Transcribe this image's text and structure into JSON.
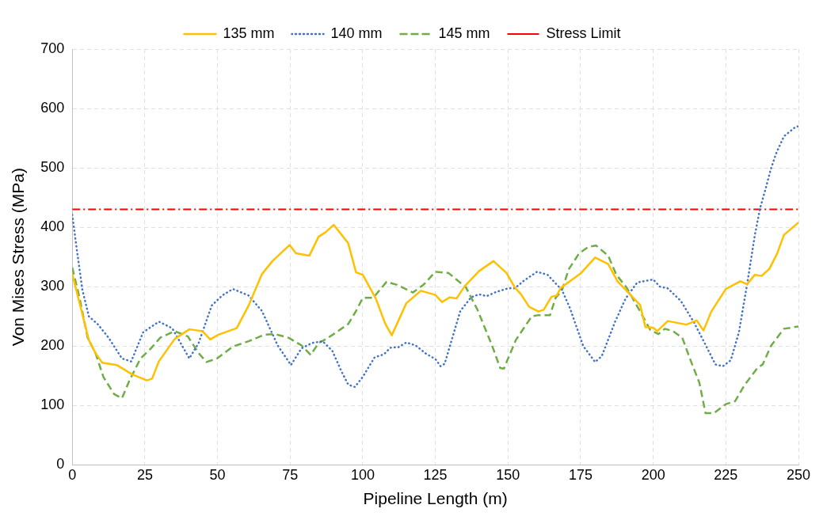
{
  "chart_data": {
    "type": "line",
    "xlabel": "Pipeline Length (m)",
    "ylabel": "Von Mises Stress (MPa)",
    "xlim": [
      0,
      250
    ],
    "xticks": [
      0,
      25,
      50,
      75,
      100,
      125,
      150,
      175,
      200,
      225,
      250
    ],
    "ylim": [
      0,
      700
    ],
    "yticks": [
      0,
      100,
      200,
      300,
      400,
      500,
      600,
      700
    ],
    "grid": true,
    "legend": "top",
    "series": [
      {
        "name": "135 mm",
        "color": "#ffc000",
        "line_style": "solid",
        "x": [
          0,
          3,
          5.7,
          8,
          10.3,
          15.3,
          20.7,
          25.7,
          27.5,
          29.8,
          35.3,
          40.3,
          44.8,
          47.5,
          50.3,
          56.6,
          60.7,
          65.3,
          68.9,
          74.8,
          77,
          81.6,
          84.8,
          87.3,
          90,
          95,
          97.7,
          100,
          104.5,
          107.7,
          110,
          115,
          120,
          125,
          127.3,
          130,
          132.3,
          135,
          140,
          145,
          149.5,
          152.3,
          154.5,
          157.3,
          160.5,
          162.3,
          165,
          166.8,
          168.2,
          175,
          180,
          184.5,
          187.7,
          195.5,
          197.3,
          200,
          201.4,
          205,
          211.4,
          215,
          217.3,
          220,
          225,
          230,
          232.3,
          235,
          237.3,
          240,
          242.7,
          245,
          250
        ],
        "values": [
          321,
          263,
          210,
          188,
          172,
          168,
          152,
          142,
          145,
          174,
          212,
          228,
          225,
          211,
          219,
          230,
          268,
          321,
          343,
          370,
          356,
          352,
          384,
          392,
          404,
          373,
          324,
          320,
          280,
          238,
          218,
          272,
          293,
          286,
          274,
          282,
          280,
          300,
          326,
          343,
          323,
          299,
          287,
          266,
          258,
          261,
          283,
          285,
          298,
          322,
          349,
          338,
          309,
          269,
          232,
          231,
          225,
          242,
          236,
          243,
          226,
          258,
          296,
          309,
          304,
          320,
          318,
          330,
          356,
          387,
          408
        ]
      },
      {
        "name": "140 mm",
        "color": "#4472c4",
        "line_style": "dotted",
        "x": [
          0,
          1.6,
          3.5,
          5.7,
          8.9,
          12.5,
          17.1,
          20.3,
          24.4,
          29.8,
          34.4,
          40.3,
          43.5,
          48,
          51.6,
          55.3,
          60.7,
          65.3,
          70.7,
          75.3,
          78.9,
          82.5,
          86.2,
          89.5,
          92.7,
          95,
          97.3,
          100,
          104.1,
          107.3,
          109.5,
          112.3,
          115,
          118.2,
          121.8,
          125,
          126.8,
          128.2,
          130.5,
          133.6,
          137.3,
          140,
          142.7,
          145.9,
          150,
          152.3,
          155.5,
          160,
          163.6,
          168.6,
          171.4,
          175.9,
          180,
          182.3,
          186.8,
          190.5,
          194.5,
          200,
          202.3,
          205,
          209.5,
          214,
          217.7,
          221.4,
          224,
          226.7,
          229.5,
          232.3,
          235,
          236.8,
          238.6,
          240.5,
          242.3,
          245,
          249,
          250
        ],
        "values": [
          421,
          361,
          294,
          250,
          236,
          214,
          179,
          174,
          223,
          241,
          230,
          179,
          205,
          268,
          285,
          296,
          285,
          259,
          201,
          168,
          196,
          205,
          208,
          192,
          157,
          135,
          131,
          148,
          181,
          186,
          197,
          198,
          206,
          201,
          187,
          178,
          166,
          170,
          208,
          259,
          282,
          287,
          284,
          291,
          297,
          297,
          310,
          325,
          320,
          294,
          263,
          200,
          173,
          183,
          240,
          280,
          307,
          312,
          300,
          297,
          276,
          240,
          205,
          169,
          166,
          176,
          223,
          303,
          387,
          432,
          463,
          498,
          524,
          553,
          569,
          570
        ]
      },
      {
        "name": "145 mm",
        "color": "#70ad47",
        "line_style": "dashed",
        "x": [
          0,
          2.5,
          5.3,
          8,
          10.7,
          14.4,
          17.1,
          19.8,
          23.5,
          27.1,
          30.3,
          35.3,
          39.8,
          43.5,
          46.2,
          49.8,
          55.3,
          60.7,
          66.2,
          69.8,
          74.4,
          78.9,
          82.1,
          84.8,
          86.4,
          90,
          95,
          97.7,
          100,
          103.6,
          108.2,
          111.8,
          117.3,
          120.9,
          125,
          129.5,
          135.5,
          139.5,
          144.5,
          147.3,
          148.6,
          152.7,
          158.2,
          160.5,
          164.5,
          166.4,
          168.6,
          170.9,
          174.5,
          177.7,
          180.4,
          184.5,
          187.3,
          190.9,
          195.5,
          199,
          201.8,
          204,
          206.8,
          210,
          212.7,
          215.9,
          218,
          220.9,
          225,
          228.2,
          231.4,
          235.9,
          237.7,
          240.5,
          245,
          247.7,
          250
        ],
        "values": [
          332,
          281,
          214,
          188,
          148,
          119,
          112,
          143,
          179,
          196,
          214,
          225,
          216,
          188,
          173,
          179,
          199,
          208,
          219,
          220,
          214,
          201,
          185,
          205,
          209,
          220,
          237,
          259,
          281,
          281,
          308,
          303,
          290,
          303,
          325,
          323,
          299,
          261,
          201,
          163,
          162,
          210,
          250,
          252,
          252,
          281,
          294,
          329,
          356,
          367,
          369,
          352,
          320,
          298,
          258,
          227,
          220,
          229,
          225,
          214,
          178,
          138,
          87,
          87,
          102,
          107,
          134,
          163,
          169,
          200,
          229,
          231,
          233
        ]
      }
    ],
    "ref_lines": [
      {
        "axis": "y",
        "value": 430,
        "label": "Stress Limit",
        "color": "#ff0000",
        "line_style": "dashdot"
      }
    ]
  }
}
